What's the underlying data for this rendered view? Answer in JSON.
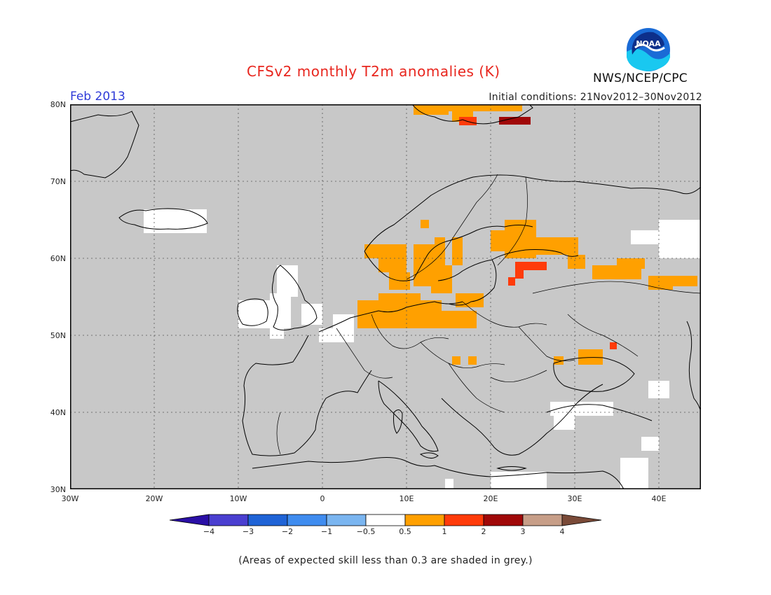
{
  "header": {
    "title": "CFSv2 monthly T2m anomalies (K)",
    "month": "Feb 2013",
    "initial_conditions": "Initial conditions: 21Nov2012–30Nov2012",
    "agency": "NWS/NCEP/CPC",
    "logo_text": "NOAA"
  },
  "axes": {
    "lat_labels": [
      "80N",
      "70N",
      "60N",
      "50N",
      "40N",
      "30N"
    ],
    "lon_labels": [
      "30W",
      "20W",
      "10W",
      "0",
      "10E",
      "20E",
      "30E",
      "40E"
    ]
  },
  "colorbar": {
    "labels": [
      "-4",
      "-3",
      "-2",
      "-1",
      "-0.5",
      "0.5",
      "1",
      "2",
      "3",
      "4"
    ],
    "colors": [
      "#2a0fa6",
      "#4a3fd0",
      "#1f63d6",
      "#3f8cef",
      "#7ab5f0",
      "#ffffff",
      "#ffa000",
      "#ff3b0a",
      "#a00808",
      "#c79e88",
      "#7a4a38"
    ]
  },
  "colors": {
    "map_grey": "#c8c8c8",
    "orange": "#ffa000",
    "red": "#ff3b0a",
    "darkred": "#a00808",
    "white": "#ffffff"
  },
  "footer": {
    "note": "(Areas of expected skill less than 0.3 are shaded in grey.)"
  }
}
